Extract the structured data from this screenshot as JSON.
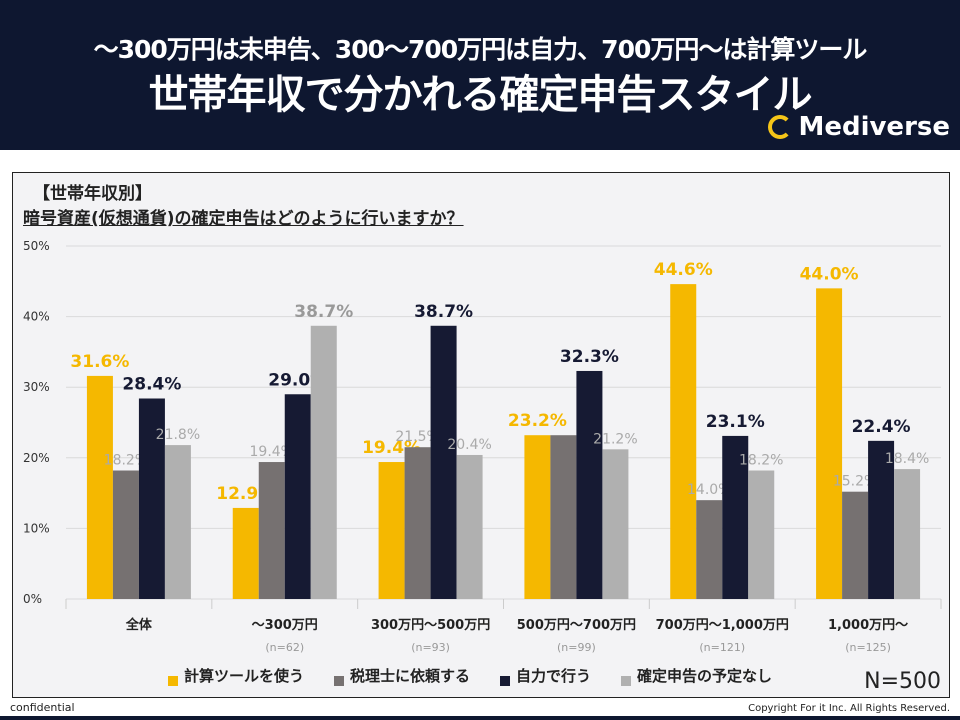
{
  "header": {
    "subtitle": "〜300万円は未申告、300〜700万円は自力、700万円〜は計算ツール",
    "title": "世帯年収で分かれる確定申告スタイル",
    "logo": "Mediverse"
  },
  "chart_data": {
    "type": "bar",
    "title": "【世帯年収別】",
    "question": "暗号資産(仮想通貨)の確定申告はどのように行いますか？",
    "categories": [
      "全体",
      "〜300万円",
      "300万円〜500万円",
      "500万円〜700万円",
      "700万円〜1,000万円",
      "1,000万円〜"
    ],
    "category_n": [
      "",
      "(n=62)",
      "(n=93)",
      "(n=99)",
      "(n=121)",
      "(n=125)"
    ],
    "yticks": [
      "0%",
      "10%",
      "20%",
      "30%",
      "40%",
      "50%"
    ],
    "ylim": [
      0,
      50
    ],
    "grid": true,
    "legend_position": "bottom",
    "series": [
      {
        "name": "計算ツールを使う",
        "color": "#f5b800",
        "values": [
          31.6,
          12.9,
          19.4,
          23.2,
          44.6,
          44.0
        ]
      },
      {
        "name": "税理士に依頼する",
        "color": "#767171",
        "values": [
          18.2,
          19.4,
          21.5,
          23.2,
          14.0,
          15.2
        ]
      },
      {
        "name": "自力で行う",
        "color": "#161a33",
        "values": [
          28.4,
          29.0,
          38.7,
          32.3,
          23.1,
          22.4
        ]
      },
      {
        "name": "確定申告の予定なし",
        "color": "#b0b0b0",
        "values": [
          21.8,
          38.7,
          20.4,
          21.2,
          18.2,
          18.4
        ]
      }
    ],
    "labels": [
      [
        "31.6%",
        "18.2%",
        "28.4%",
        "21.8%"
      ],
      [
        "12.9%",
        "19.4%",
        "29.0%",
        "38.7%"
      ],
      [
        "19.4%",
        "21.5%",
        "38.7%",
        "20.4%"
      ],
      [
        "23.2%",
        "",
        "32.3%",
        "21.2%"
      ],
      [
        "44.6%",
        "14.0%",
        "23.1%",
        "18.2%"
      ],
      [
        "44.0%",
        "15.2%",
        "22.4%",
        "18.4%"
      ]
    ],
    "n_total": "N=500"
  },
  "footer": {
    "confidential": "confidential",
    "copyright": "Copyright For it Inc. All Rights Reserved."
  }
}
